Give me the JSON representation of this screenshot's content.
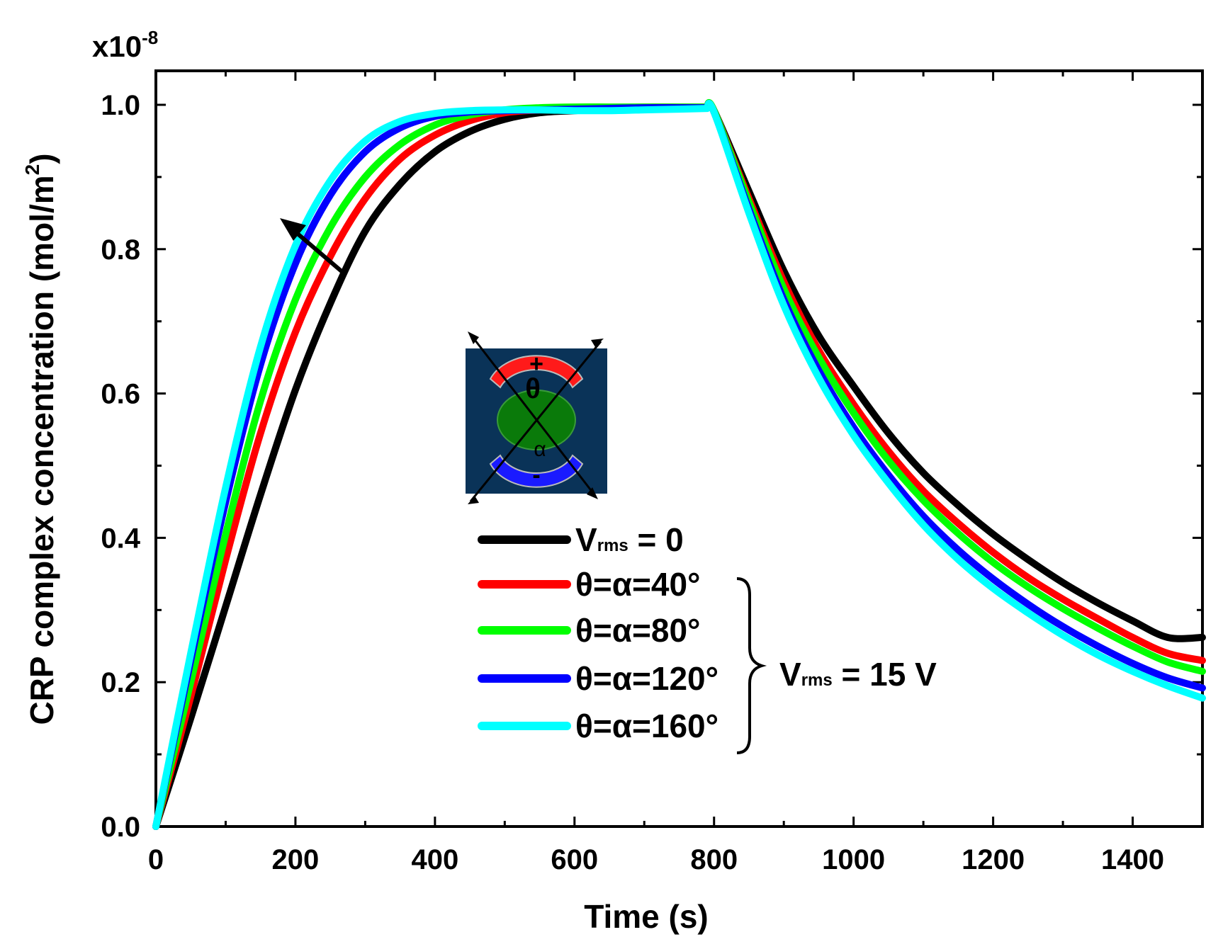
{
  "chart_data": {
    "type": "line",
    "xlabel": "Time (s)",
    "ylabel": "CRP complex concentration (mol/m",
    "ylabel_superscript": "2",
    "ylabel_close": ")",
    "y_multiplier_base": "x10",
    "y_multiplier_exponent": "-8",
    "xlim": [
      0,
      1500
    ],
    "ylim": [
      0,
      1.0
    ],
    "x_ticks": [
      0,
      200,
      400,
      600,
      800,
      1000,
      1200,
      1400
    ],
    "x_tick_labels": [
      "0",
      "200",
      "400",
      "600",
      "800",
      "1000",
      "1200",
      "1400"
    ],
    "y_ticks": [
      0.0,
      0.2,
      0.4,
      0.6,
      0.8,
      1.0
    ],
    "y_tick_labels": [
      "0.0",
      "0.2",
      "0.4",
      "0.6",
      "0.8",
      "1.0"
    ],
    "series": [
      {
        "name": "Vrms = 0",
        "legend_prefix": "V",
        "legend_sub": "rms",
        "legend_suffix": " = 0",
        "color": "#000000",
        "x": [
          0,
          50,
          100,
          150,
          200,
          250,
          300,
          350,
          400,
          450,
          500,
          550,
          600,
          650,
          700,
          750,
          790,
          800,
          850,
          900,
          950,
          1000,
          1050,
          1100,
          1150,
          1200,
          1250,
          1300,
          1350,
          1400,
          1450,
          1500
        ],
        "values": [
          0,
          0.15,
          0.305,
          0.46,
          0.605,
          0.725,
          0.825,
          0.89,
          0.935,
          0.963,
          0.98,
          0.989,
          0.992,
          0.994,
          0.995,
          0.996,
          0.997,
          0.992,
          0.88,
          0.77,
          0.68,
          0.61,
          0.545,
          0.49,
          0.445,
          0.405,
          0.37,
          0.338,
          0.31,
          0.285,
          0.262,
          0.262
        ]
      },
      {
        "name": "θ=α=40°",
        "legend_prefix": "θ=α=40°",
        "legend_sub": "",
        "legend_suffix": "",
        "color": "#ff0000",
        "x": [
          0,
          50,
          100,
          150,
          200,
          250,
          300,
          350,
          400,
          450,
          500,
          550,
          600,
          650,
          700,
          750,
          790,
          800,
          850,
          900,
          950,
          1000,
          1050,
          1100,
          1150,
          1200,
          1250,
          1300,
          1350,
          1400,
          1450,
          1500
        ],
        "values": [
          0,
          0.18,
          0.37,
          0.545,
          0.685,
          0.79,
          0.87,
          0.925,
          0.958,
          0.978,
          0.989,
          0.993,
          0.995,
          0.996,
          0.997,
          0.997,
          0.997,
          0.992,
          0.87,
          0.755,
          0.66,
          0.585,
          0.52,
          0.465,
          0.42,
          0.38,
          0.345,
          0.315,
          0.288,
          0.262,
          0.24,
          0.23
        ]
      },
      {
        "name": "θ=α=80°",
        "legend_prefix": "θ=α=80°",
        "legend_sub": "",
        "legend_suffix": "",
        "color": "#00ff00",
        "x": [
          0,
          50,
          100,
          150,
          200,
          250,
          300,
          350,
          400,
          450,
          500,
          550,
          600,
          650,
          700,
          750,
          790,
          800,
          850,
          900,
          950,
          1000,
          1050,
          1100,
          1150,
          1200,
          1250,
          1300,
          1350,
          1400,
          1450,
          1500
        ],
        "values": [
          0,
          0.2,
          0.405,
          0.59,
          0.73,
          0.83,
          0.9,
          0.945,
          0.972,
          0.986,
          0.993,
          0.996,
          0.997,
          0.997,
          0.997,
          0.997,
          0.997,
          0.992,
          0.865,
          0.745,
          0.65,
          0.573,
          0.507,
          0.452,
          0.406,
          0.366,
          0.332,
          0.302,
          0.275,
          0.25,
          0.228,
          0.215
        ]
      },
      {
        "name": "θ=α=120°",
        "legend_prefix": "θ=α=120°",
        "legend_sub": "",
        "legend_suffix": "",
        "color": "#0000ff",
        "x": [
          0,
          50,
          100,
          150,
          200,
          250,
          300,
          350,
          400,
          450,
          500,
          550,
          600,
          650,
          700,
          750,
          790,
          800,
          850,
          900,
          950,
          1000,
          1050,
          1100,
          1150,
          1200,
          1250,
          1300,
          1350,
          1400,
          1450,
          1500
        ],
        "values": [
          0,
          0.23,
          0.45,
          0.64,
          0.78,
          0.875,
          0.935,
          0.968,
          0.984,
          0.99,
          0.992,
          0.993,
          0.994,
          0.995,
          0.996,
          0.996,
          0.996,
          0.99,
          0.855,
          0.73,
          0.632,
          0.553,
          0.487,
          0.43,
          0.383,
          0.343,
          0.308,
          0.277,
          0.25,
          0.226,
          0.206,
          0.192
        ]
      },
      {
        "name": "θ=α=160°",
        "legend_prefix": "θ=α=160°",
        "legend_sub": "",
        "legend_suffix": "",
        "color": "#00ffff",
        "x": [
          0,
          50,
          100,
          150,
          200,
          250,
          300,
          350,
          400,
          450,
          500,
          550,
          600,
          650,
          700,
          750,
          790,
          800,
          850,
          900,
          950,
          1000,
          1050,
          1100,
          1150,
          1200,
          1250,
          1300,
          1350,
          1400,
          1450,
          1500
        ],
        "values": [
          0,
          0.24,
          0.47,
          0.665,
          0.805,
          0.895,
          0.95,
          0.977,
          0.988,
          0.992,
          0.993,
          0.993,
          0.992,
          0.992,
          0.993,
          0.994,
          0.995,
          0.99,
          0.85,
          0.722,
          0.622,
          0.542,
          0.476,
          0.418,
          0.37,
          0.33,
          0.296,
          0.265,
          0.238,
          0.215,
          0.195,
          0.178
        ]
      }
    ],
    "bracket_label_prefix": "V",
    "bracket_label_sub": "rms",
    "bracket_label_suffix": " = 15 V",
    "annotation": "arrow indicating increasing θ=α shifts curves left",
    "inset": {
      "description": "electrode geometry schematic",
      "label_plus": "+",
      "label_minus": "-",
      "label_theta": "θ",
      "label_alpha": "α",
      "colors": {
        "background": "#0a3358",
        "top_electrode": "#ff1a1a",
        "bottom_electrode": "#1a1aff",
        "center": "#0a7a0a"
      }
    }
  }
}
